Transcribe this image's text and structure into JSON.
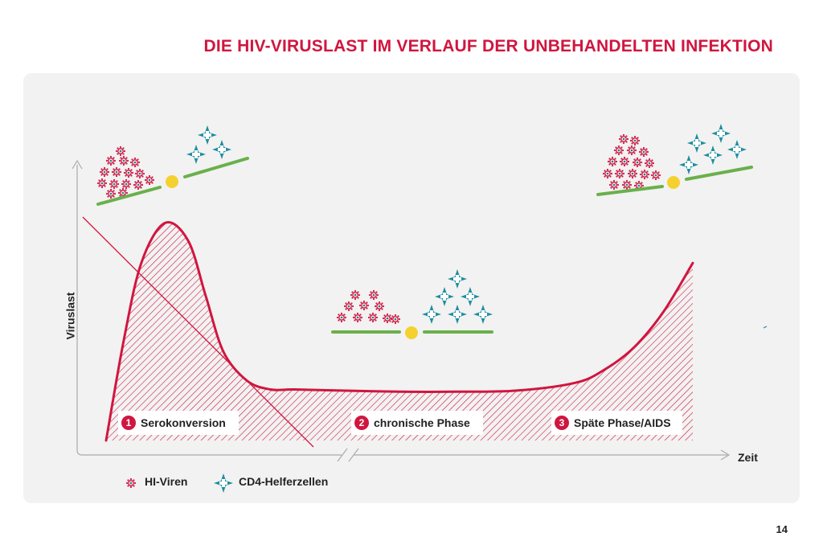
{
  "page_number": "14",
  "colors": {
    "accent": "#d0163f",
    "virus": "#d0163f",
    "cd4": "#1b8e9e",
    "scale_bar": "#6ab04c",
    "pivot": "#f5d130"
  },
  "chart_data": {
    "type": "area",
    "title": "DIE HIV-VIRUSLAST IM VERLAUF DER UNBEHANDELTEN INFEKTION",
    "xlabel": "Zeit",
    "ylabel": "Viruslast",
    "axis_break": "x",
    "series": [
      {
        "x": [
          0,
          3,
          6,
          10,
          14,
          17,
          20,
          24,
          28,
          32,
          40,
          50,
          60,
          70,
          80,
          85,
          90,
          95,
          100
        ],
        "values": [
          0,
          45,
          80,
          98,
          90,
          65,
          40,
          27,
          23,
          23,
          22.5,
          22,
          22,
          22.5,
          26,
          32,
          42,
          58,
          80
        ]
      }
    ],
    "ylim": [
      0,
      100
    ],
    "xlim": [
      0,
      100
    ],
    "phases": [
      {
        "number": "1",
        "label": "Serokonversion"
      },
      {
        "number": "2",
        "label": "chronische Phase"
      },
      {
        "number": "3",
        "label": "Späte Phase/AIDS"
      }
    ],
    "legend": [
      {
        "icon": "virus-icon",
        "label": "HI-Viren"
      },
      {
        "icon": "cd4-cell-icon",
        "label": "CD4-Helferzellen"
      }
    ]
  }
}
